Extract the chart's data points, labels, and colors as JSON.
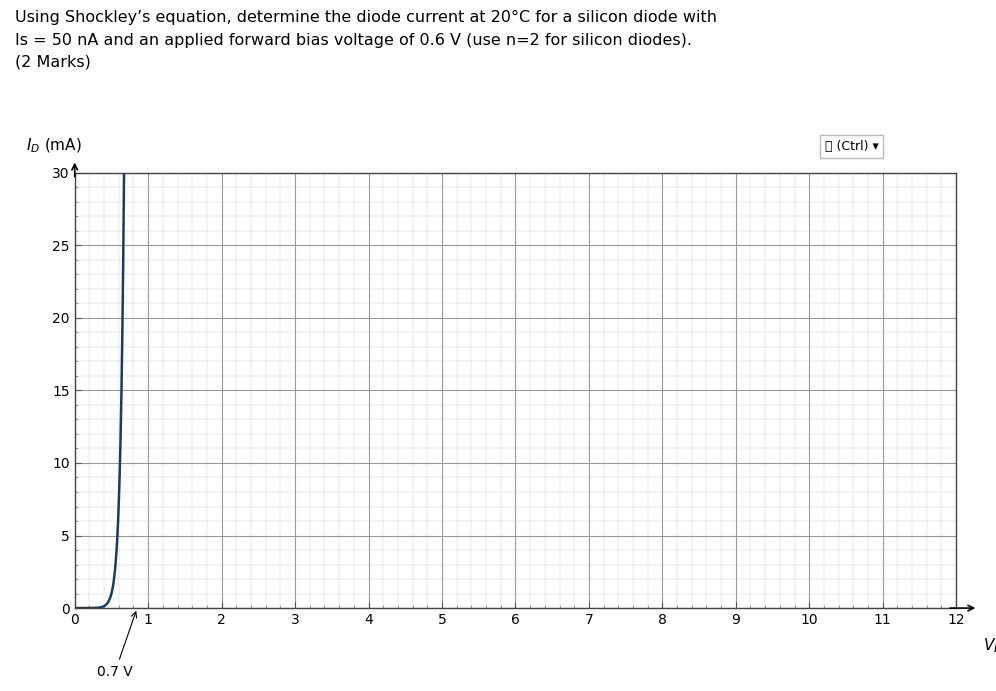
{
  "title_text": "Using Shockley’s equation, determine the diode current at 20°C for a silicon diode with\nIs = 50 nA and an applied forward bias voltage of 0.6 V (use n=2 for silicon diodes).\n(2 Marks)",
  "ylabel": "$\\mathit{I}_D$ (mA)",
  "xlabel": "$\\mathit{V}_D$ (V)",
  "annotation_07v": "0.7 V",
  "ctrl_label": "📋 (Ctrl) ▾",
  "xmin": 0,
  "xmax": 12,
  "ymin": 0,
  "ymax": 30,
  "xticks": [
    0,
    1,
    2,
    3,
    4,
    5,
    6,
    7,
    8,
    9,
    10,
    11,
    12
  ],
  "yticks": [
    0,
    5,
    10,
    15,
    20,
    25,
    30
  ],
  "major_grid_color": "#999999",
  "minor_grid_color": "#cccccc",
  "curve_color": "#1e3a5f",
  "curve_linewidth": 1.8,
  "background_color": "#ffffff",
  "Is": 5e-08,
  "n": 2,
  "T": 293,
  "title_fontsize": 11.5,
  "axis_label_fontsize": 11,
  "tick_fontsize": 10
}
